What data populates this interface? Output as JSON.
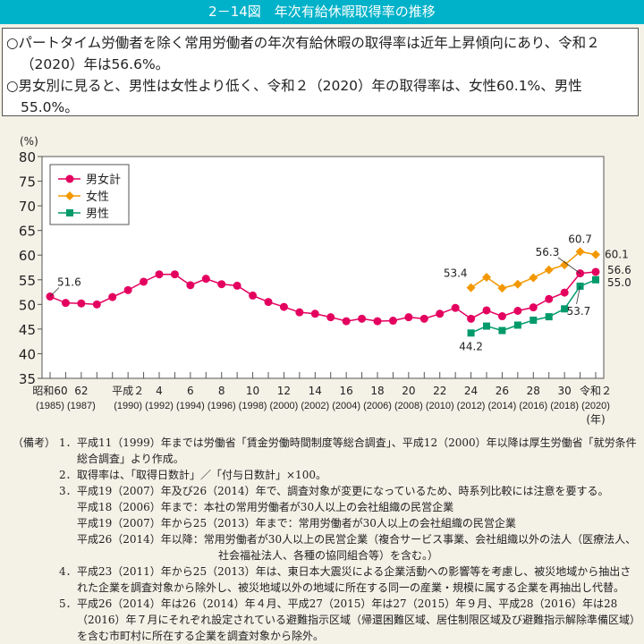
{
  "title": "2－14図　年次有給休暇取得率の推移",
  "summary": [
    "○パートタイム労働者を除く常用労働者の年次有給休暇の取得率は近年上昇傾向にあり、令和２（2020）年は56.6%。",
    "○男女別に見ると、男性は女性より低く、令和２（2020）年の取得率は、女性60.1%、男性55.0%。"
  ],
  "chart_data": {
    "type": "line",
    "ylabel": "(%)",
    "xlabel": "(年)",
    "ylim": [
      35,
      80
    ],
    "yticks": [
      35,
      40,
      45,
      50,
      55,
      60,
      65,
      70,
      75,
      80
    ],
    "grid": false,
    "legend_position": "top-left",
    "x": [
      1985,
      1986,
      1987,
      1988,
      1989,
      1990,
      1991,
      1992,
      1993,
      1994,
      1995,
      1996,
      1997,
      1998,
      1999,
      2000,
      2001,
      2002,
      2003,
      2004,
      2005,
      2006,
      2007,
      2008,
      2009,
      2010,
      2011,
      2012,
      2013,
      2014,
      2015,
      2016,
      2017,
      2018,
      2019,
      2020
    ],
    "xtick_labels": [
      {
        "year": 1985,
        "era": "昭和60",
        "ad": "(1985)"
      },
      {
        "year": 1987,
        "era": "62",
        "ad": "(1987)"
      },
      {
        "year": 1990,
        "era": "平成２",
        "ad": "(1990)"
      },
      {
        "year": 1992,
        "era": "4",
        "ad": "(1992)"
      },
      {
        "year": 1994,
        "era": "6",
        "ad": "(1994)"
      },
      {
        "year": 1996,
        "era": "8",
        "ad": "(1996)"
      },
      {
        "year": 1998,
        "era": "10",
        "ad": "(1998)"
      },
      {
        "year": 2000,
        "era": "12",
        "ad": "(2000)"
      },
      {
        "year": 2002,
        "era": "14",
        "ad": "(2002)"
      },
      {
        "year": 2004,
        "era": "16",
        "ad": "(2004)"
      },
      {
        "year": 2006,
        "era": "18",
        "ad": "(2006)"
      },
      {
        "year": 2008,
        "era": "20",
        "ad": "(2008)"
      },
      {
        "year": 2010,
        "era": "22",
        "ad": "(2010)"
      },
      {
        "year": 2012,
        "era": "24",
        "ad": "(2012)"
      },
      {
        "year": 2014,
        "era": "26",
        "ad": "(2014)"
      },
      {
        "year": 2016,
        "era": "28",
        "ad": "(2016)"
      },
      {
        "year": 2018,
        "era": "30",
        "ad": "(2018)"
      },
      {
        "year": 2020,
        "era": "令和２",
        "ad": "(2020)"
      }
    ],
    "series": [
      {
        "name": "男女計",
        "color": "#e4005f",
        "marker": "circle",
        "values": [
          51.6,
          50.3,
          50.2,
          50.0,
          51.5,
          52.9,
          54.6,
          56.1,
          56.1,
          53.9,
          55.2,
          54.1,
          53.8,
          51.8,
          50.5,
          49.5,
          48.4,
          48.1,
          47.4,
          46.6,
          47.1,
          46.6,
          46.7,
          47.4,
          47.1,
          48.1,
          49.3,
          47.1,
          48.8,
          47.6,
          48.7,
          49.4,
          51.1,
          52.4,
          56.3,
          56.6
        ]
      },
      {
        "name": "女性",
        "color": "#f39800",
        "marker": "diamond",
        "values": [
          null,
          null,
          null,
          null,
          null,
          null,
          null,
          null,
          null,
          null,
          null,
          null,
          null,
          null,
          null,
          null,
          null,
          null,
          null,
          null,
          null,
          null,
          null,
          null,
          null,
          null,
          null,
          53.4,
          55.5,
          53.3,
          54.1,
          55.4,
          57.0,
          58.0,
          60.7,
          60.1
        ]
      },
      {
        "name": "男性",
        "color": "#009a6b",
        "marker": "square",
        "values": [
          null,
          null,
          null,
          null,
          null,
          null,
          null,
          null,
          null,
          null,
          null,
          null,
          null,
          null,
          null,
          null,
          null,
          null,
          null,
          null,
          null,
          null,
          null,
          null,
          null,
          null,
          null,
          44.2,
          45.6,
          44.7,
          45.8,
          46.8,
          47.5,
          49.1,
          53.7,
          55.0
        ]
      }
    ],
    "annotations": [
      {
        "series": 0,
        "year": 1985,
        "text": "51.6"
      },
      {
        "series": 0,
        "year": 2019,
        "text": "56.3"
      },
      {
        "series": 0,
        "year": 2020,
        "text": "56.6"
      },
      {
        "series": 1,
        "year": 2012,
        "text": "53.4"
      },
      {
        "series": 1,
        "year": 2019,
        "text": "60.7"
      },
      {
        "series": 1,
        "year": 2020,
        "text": "60.1"
      },
      {
        "series": 2,
        "year": 2012,
        "text": "44.2"
      },
      {
        "series": 2,
        "year": 2019,
        "text": "53.7"
      },
      {
        "series": 2,
        "year": 2020,
        "text": "55.0"
      }
    ]
  },
  "notes": {
    "head": "（備考）",
    "items": [
      {
        "num": "1．",
        "lines": [
          "平成11（1999）年までは労働省「賃金労働時間制度等総合調査」、平成12（2000）年以降は厚生労働省「就労条件総合調査」より作成。"
        ]
      },
      {
        "num": "2．",
        "lines": [
          "取得率は、「取得日数計」／「付与日数計」×100。"
        ]
      },
      {
        "num": "3．",
        "lines": [
          "平成19（2007）年及び26（2014）年で、調査対象が変更になっているため、時系列比較には注意を要する。"
        ],
        "sub": [
          "平成18（2006）年まで：本社の常用労働者が30人以上の会社組織の民営企業",
          "平成19（2007）年から25（2013）年まで：常用労働者が30人以上の会社組織の民営企業",
          "平成26（2014）年以降：常用労働者が30人以上の民営企業（複合サービス事業、会社組織以外の法人（医療法人、"
        ],
        "sub2": "社会福祉法人、各種の協同組合等）を含む。）"
      },
      {
        "num": "4．",
        "lines": [
          "平成23（2011）年から25（2013）年は、東日本大震災による企業活動への影響等を考慮し、被災地域から抽出された企業を調査対象から除外し、被災地域以外の地域に所在する同一の産業・規模に属する企業を再抽出し代替。"
        ]
      },
      {
        "num": "5．",
        "lines": [
          "平成26（2014）年は26（2014）年４月、平成27（2015）年は27（2015）年９月、平成28（2016）年は28（2016）年７月にそれぞれ設定されている避難指示区域（帰還困難区域、居住制限区域及び避難指示解除準備区域）を含む市町村に所在する企業を調査対象から除外。"
        ]
      }
    ]
  }
}
